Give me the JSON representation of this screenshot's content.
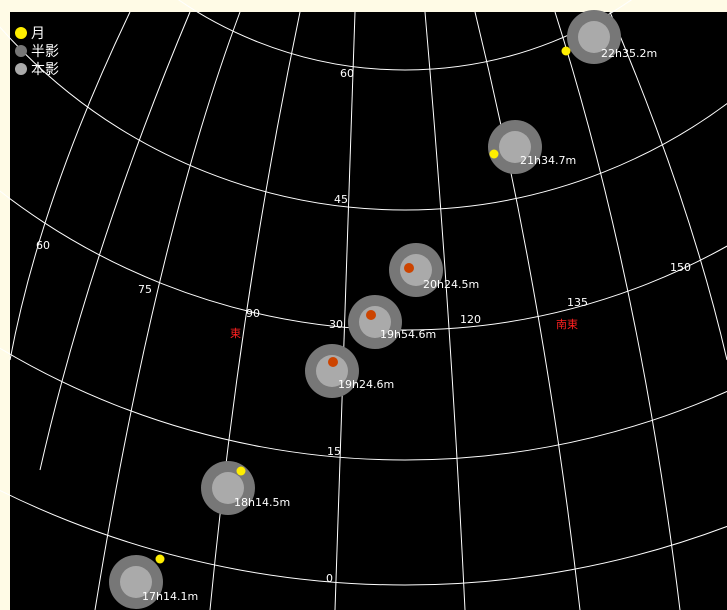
{
  "legend": {
    "items": [
      {
        "label": "月",
        "color": "#ffee00"
      },
      {
        "label": "半影",
        "color": "#777777"
      },
      {
        "label": "本影",
        "color": "#aaaaaa"
      }
    ]
  },
  "grid": {
    "alt_labels": [
      "60",
      "45",
      "30",
      "15",
      "0"
    ],
    "az_labels": [
      "60",
      "75",
      "90",
      "120",
      "135",
      "150"
    ]
  },
  "directions": {
    "east": "東",
    "southeast": "南東"
  },
  "events": [
    {
      "time": "22h35.2m",
      "moon": "#ffee00"
    },
    {
      "time": "21h34.7m",
      "moon": "#ffee00"
    },
    {
      "time": "20h24.5m",
      "moon": "#cc4400"
    },
    {
      "time": "19h54.6m",
      "moon": "#cc4400"
    },
    {
      "time": "19h24.6m",
      "moon": "#cc4400"
    },
    {
      "time": "18h14.5m",
      "moon": "#ffee00"
    },
    {
      "time": "17h14.1m",
      "moon": "#ffee00"
    }
  ],
  "colors": {
    "sky": "#000000",
    "grid": "#ffffff",
    "penumbra": "#777777",
    "umbra": "#aaaaaa",
    "direction": "#ff2020"
  }
}
